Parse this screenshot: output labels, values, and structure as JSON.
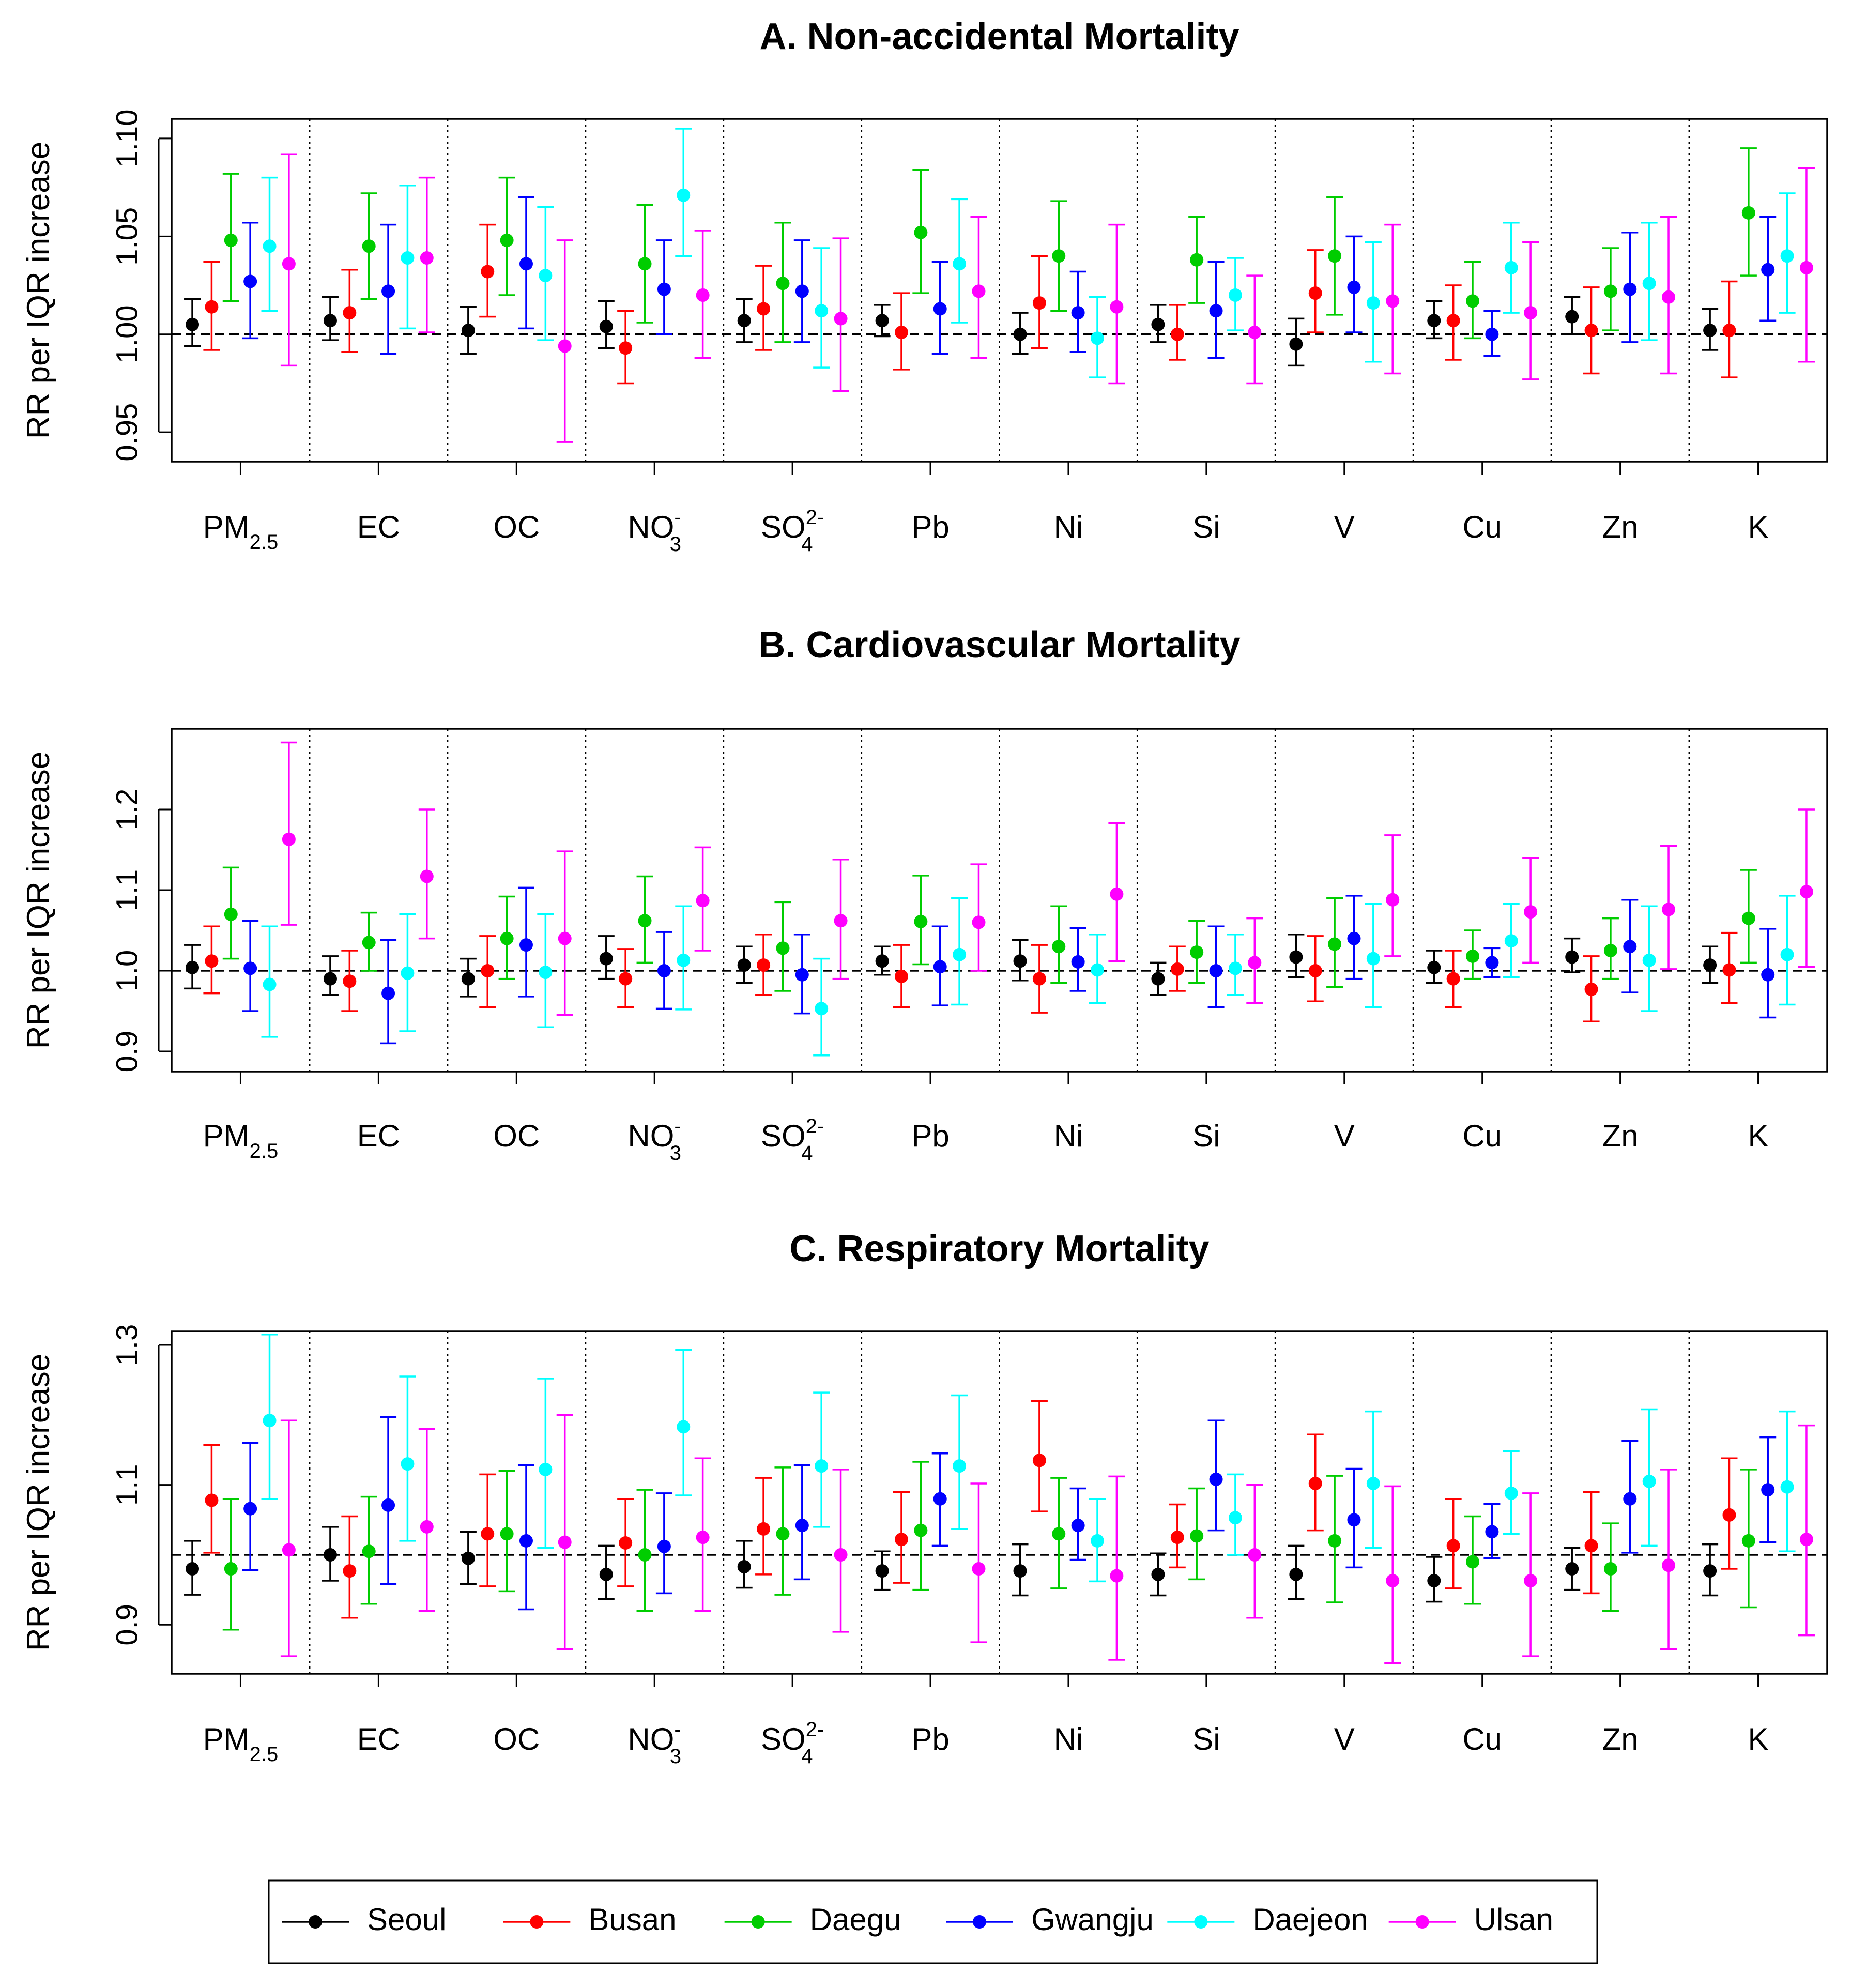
{
  "reference_line": 1.0,
  "categories": [
    {
      "base": "PM",
      "sub": "2.5",
      "sup": ""
    },
    {
      "base": "EC",
      "sub": "",
      "sup": ""
    },
    {
      "base": "OC",
      "sub": "",
      "sup": ""
    },
    {
      "base": "NO",
      "sub": "3",
      "sup": "-"
    },
    {
      "base": "SO",
      "sub": "4",
      "sup": "2-"
    },
    {
      "base": "Pb",
      "sub": "",
      "sup": ""
    },
    {
      "base": "Ni",
      "sub": "",
      "sup": ""
    },
    {
      "base": "Si",
      "sub": "",
      "sup": ""
    },
    {
      "base": "V",
      "sub": "",
      "sup": ""
    },
    {
      "base": "Cu",
      "sub": "",
      "sup": ""
    },
    {
      "base": "Zn",
      "sub": "",
      "sup": ""
    },
    {
      "base": "K",
      "sub": "",
      "sup": ""
    }
  ],
  "legend": [
    {
      "name": "Seoul",
      "color": "#000000"
    },
    {
      "name": "Busan",
      "color": "#ff0000"
    },
    {
      "name": "Daegu",
      "color": "#00cd00"
    },
    {
      "name": "Gwangju",
      "color": "#0000ff"
    },
    {
      "name": "Daejeon",
      "color": "#00ffff"
    },
    {
      "name": "Ulsan",
      "color": "#ff00ff"
    }
  ],
  "chart_data": [
    {
      "type": "scatter",
      "title": "A. Non-accidental Mortality",
      "ylabel": "RR per IQR increase",
      "ylim": [
        0.935,
        1.11
      ],
      "yticks": [
        "0.95",
        "1.00",
        "1.05",
        "1.10"
      ],
      "ytick_values": [
        0.95,
        1.0,
        1.05,
        1.1
      ],
      "series": [
        {
          "name": "Seoul",
          "estimate": [
            1.005,
            1.007,
            1.002,
            1.004,
            1.007,
            1.007,
            1.0,
            1.005,
            0.995,
            1.007,
            1.009,
            1.002
          ],
          "lower": [
            0.994,
            0.997,
            0.99,
            0.993,
            0.996,
            0.999,
            0.99,
            0.996,
            0.984,
            0.998,
            1.0,
            0.992
          ],
          "upper": [
            1.018,
            1.019,
            1.014,
            1.017,
            1.018,
            1.015,
            1.011,
            1.015,
            1.008,
            1.017,
            1.019,
            1.013
          ]
        },
        {
          "name": "Busan",
          "estimate": [
            1.014,
            1.011,
            1.032,
            0.993,
            1.013,
            1.001,
            1.016,
            1.0,
            1.021,
            1.007,
            1.002,
            1.002
          ],
          "lower": [
            0.992,
            0.991,
            1.009,
            0.975,
            0.992,
            0.982,
            0.993,
            0.987,
            1.001,
            0.987,
            0.98,
            0.978
          ],
          "upper": [
            1.037,
            1.033,
            1.056,
            1.012,
            1.035,
            1.021,
            1.04,
            1.015,
            1.043,
            1.025,
            1.024,
            1.027
          ]
        },
        {
          "name": "Daegu",
          "estimate": [
            1.048,
            1.045,
            1.048,
            1.036,
            1.026,
            1.052,
            1.04,
            1.038,
            1.04,
            1.017,
            1.022,
            1.062
          ],
          "lower": [
            1.017,
            1.018,
            1.02,
            1.006,
            0.996,
            1.021,
            1.012,
            1.016,
            1.01,
            0.998,
            1.002,
            1.03
          ],
          "upper": [
            1.082,
            1.072,
            1.08,
            1.066,
            1.057,
            1.084,
            1.068,
            1.06,
            1.07,
            1.037,
            1.044,
            1.095
          ]
        },
        {
          "name": "Gwangju",
          "estimate": [
            1.027,
            1.022,
            1.036,
            1.023,
            1.022,
            1.013,
            1.011,
            1.012,
            1.024,
            1.0,
            1.023,
            1.033
          ],
          "lower": [
            0.998,
            0.99,
            1.003,
            1.0,
            0.996,
            0.99,
            0.991,
            0.988,
            1.001,
            0.989,
            0.996,
            1.007
          ],
          "upper": [
            1.057,
            1.056,
            1.07,
            1.048,
            1.048,
            1.037,
            1.032,
            1.037,
            1.05,
            1.012,
            1.052,
            1.06
          ]
        },
        {
          "name": "Daejeon",
          "estimate": [
            1.045,
            1.039,
            1.03,
            1.071,
            1.012,
            1.036,
            0.998,
            1.02,
            1.016,
            1.034,
            1.026,
            1.04
          ],
          "lower": [
            1.012,
            1.003,
            0.997,
            1.04,
            0.983,
            1.006,
            0.978,
            1.002,
            0.986,
            1.011,
            0.997,
            1.011
          ],
          "upper": [
            1.08,
            1.076,
            1.065,
            1.105,
            1.044,
            1.069,
            1.019,
            1.039,
            1.047,
            1.057,
            1.057,
            1.072
          ]
        },
        {
          "name": "Ulsan",
          "estimate": [
            1.036,
            1.039,
            0.994,
            1.02,
            1.008,
            1.022,
            1.014,
            1.001,
            1.017,
            1.011,
            1.019,
            1.034
          ],
          "lower": [
            0.984,
            1.001,
            0.945,
            0.988,
            0.971,
            0.988,
            0.975,
            0.975,
            0.98,
            0.977,
            0.98,
            0.986
          ],
          "upper": [
            1.092,
            1.08,
            1.048,
            1.053,
            1.049,
            1.06,
            1.056,
            1.03,
            1.056,
            1.047,
            1.06,
            1.085
          ]
        }
      ]
    },
    {
      "type": "scatter",
      "title": "B. Cardiovascular Mortality",
      "ylabel": "RR per IQR increase",
      "ylim": [
        0.875,
        1.3
      ],
      "yticks": [
        "0.9",
        "1.0",
        "1.1",
        "1.2"
      ],
      "ytick_values": [
        0.9,
        1.0,
        1.1,
        1.2
      ],
      "series": [
        {
          "name": "Seoul",
          "estimate": [
            1.004,
            0.99,
            0.99,
            1.015,
            1.007,
            1.012,
            1.012,
            0.99,
            1.017,
            1.004,
            1.017,
            1.007
          ],
          "lower": [
            0.978,
            0.97,
            0.968,
            0.99,
            0.985,
            0.995,
            0.988,
            0.97,
            0.992,
            0.985,
            0.998,
            0.985
          ],
          "upper": [
            1.032,
            1.018,
            1.015,
            1.043,
            1.03,
            1.03,
            1.038,
            1.01,
            1.045,
            1.025,
            1.04,
            1.03
          ]
        },
        {
          "name": "Busan",
          "estimate": [
            1.012,
            0.987,
            1.0,
            0.99,
            1.007,
            0.993,
            0.99,
            1.002,
            1.0,
            0.99,
            0.977,
            1.001
          ],
          "lower": [
            0.972,
            0.95,
            0.955,
            0.955,
            0.97,
            0.955,
            0.948,
            0.975,
            0.962,
            0.955,
            0.937,
            0.96
          ],
          "upper": [
            1.055,
            1.025,
            1.043,
            1.027,
            1.045,
            1.032,
            1.032,
            1.03,
            1.043,
            1.025,
            1.018,
            1.047
          ]
        },
        {
          "name": "Daegu",
          "estimate": [
            1.07,
            1.035,
            1.04,
            1.062,
            1.028,
            1.061,
            1.03,
            1.023,
            1.033,
            1.018,
            1.025,
            1.065
          ],
          "lower": [
            1.015,
            1.0,
            0.99,
            1.01,
            0.975,
            1.008,
            0.985,
            0.985,
            0.98,
            0.99,
            0.99,
            1.01
          ],
          "upper": [
            1.128,
            1.072,
            1.092,
            1.117,
            1.085,
            1.118,
            1.08,
            1.062,
            1.09,
            1.05,
            1.065,
            1.125
          ]
        },
        {
          "name": "Gwangju",
          "estimate": [
            1.003,
            0.972,
            1.032,
            1.0,
            0.995,
            1.005,
            1.011,
            1.0,
            1.04,
            1.01,
            1.03,
            0.995
          ],
          "lower": [
            0.95,
            0.91,
            0.968,
            0.953,
            0.947,
            0.957,
            0.975,
            0.955,
            0.99,
            0.992,
            0.973,
            0.942
          ],
          "upper": [
            1.062,
            1.038,
            1.103,
            1.048,
            1.045,
            1.055,
            1.053,
            1.055,
            1.093,
            1.028,
            1.088,
            1.052
          ]
        },
        {
          "name": "Daejeon",
          "estimate": [
            0.983,
            0.997,
            0.998,
            1.013,
            0.953,
            1.02,
            1.001,
            1.003,
            1.015,
            1.037,
            1.013,
            1.02
          ],
          "lower": [
            0.918,
            0.925,
            0.93,
            0.952,
            0.895,
            0.958,
            0.96,
            0.97,
            0.955,
            0.992,
            0.95,
            0.958
          ],
          "upper": [
            1.055,
            1.07,
            1.07,
            1.08,
            1.015,
            1.09,
            1.045,
            1.045,
            1.083,
            1.083,
            1.08,
            1.093
          ]
        },
        {
          "name": "Ulsan",
          "estimate": [
            1.163,
            1.117,
            1.04,
            1.087,
            1.062,
            1.06,
            1.095,
            1.01,
            1.088,
            1.073,
            1.076,
            1.098
          ],
          "lower": [
            1.057,
            1.04,
            0.945,
            1.025,
            0.99,
            1.0,
            1.012,
            0.96,
            1.018,
            1.01,
            1.002,
            1.005
          ],
          "upper": [
            1.283,
            1.2,
            1.148,
            1.153,
            1.138,
            1.132,
            1.183,
            1.065,
            1.168,
            1.14,
            1.155,
            1.2
          ]
        }
      ]
    },
    {
      "type": "scatter",
      "title": "C. Respiratory Mortality",
      "ylabel": "RR per IQR increase",
      "ylim": [
        0.83,
        1.32
      ],
      "yticks": [
        "0.9",
        "1.1",
        "1.3"
      ],
      "ytick_values": [
        0.9,
        1.1,
        1.3
      ],
      "series": [
        {
          "name": "Seoul",
          "estimate": [
            0.98,
            1.0,
            0.995,
            0.972,
            0.983,
            0.977,
            0.977,
            0.972,
            0.972,
            0.963,
            0.98,
            0.977
          ],
          "lower": [
            0.943,
            0.963,
            0.958,
            0.937,
            0.953,
            0.95,
            0.942,
            0.942,
            0.937,
            0.933,
            0.95,
            0.942
          ],
          "upper": [
            1.02,
            1.04,
            1.033,
            1.013,
            1.02,
            1.005,
            1.015,
            1.002,
            1.013,
            0.997,
            1.01,
            1.015
          ]
        },
        {
          "name": "Busan",
          "estimate": [
            1.078,
            0.977,
            1.03,
            1.017,
            1.037,
            1.022,
            1.135,
            1.025,
            1.102,
            1.013,
            1.013,
            1.057
          ],
          "lower": [
            1.003,
            0.91,
            0.955,
            0.955,
            0.972,
            0.96,
            1.062,
            0.982,
            1.035,
            0.952,
            0.945,
            0.98
          ],
          "upper": [
            1.157,
            1.055,
            1.115,
            1.08,
            1.11,
            1.09,
            1.22,
            1.072,
            1.172,
            1.08,
            1.09,
            1.138
          ]
        },
        {
          "name": "Daegu",
          "estimate": [
            0.98,
            1.005,
            1.03,
            1.0,
            1.03,
            1.035,
            1.03,
            1.027,
            1.02,
            0.99,
            0.98,
            1.02
          ],
          "lower": [
            0.893,
            0.93,
            0.948,
            0.92,
            0.943,
            0.95,
            0.952,
            0.965,
            0.932,
            0.93,
            0.92,
            0.925
          ],
          "upper": [
            1.08,
            1.083,
            1.12,
            1.093,
            1.125,
            1.133,
            1.11,
            1.095,
            1.113,
            1.055,
            1.045,
            1.122
          ]
        },
        {
          "name": "Gwangju",
          "estimate": [
            1.066,
            1.071,
            1.02,
            1.012,
            1.042,
            1.08,
            1.042,
            1.108,
            1.05,
            1.033,
            1.08,
            1.093
          ],
          "lower": [
            0.978,
            0.958,
            0.922,
            0.945,
            0.965,
            1.013,
            0.993,
            1.035,
            0.982,
            0.995,
            1.003,
            1.018
          ],
          "upper": [
            1.16,
            1.197,
            1.128,
            1.088,
            1.128,
            1.145,
            1.095,
            1.192,
            1.123,
            1.073,
            1.163,
            1.168
          ]
        },
        {
          "name": "Daejeon",
          "estimate": [
            1.192,
            1.13,
            1.122,
            1.183,
            1.127,
            1.127,
            1.02,
            1.053,
            1.102,
            1.088,
            1.105,
            1.097
          ],
          "lower": [
            1.08,
            1.02,
            1.01,
            1.085,
            1.04,
            1.037,
            0.962,
            1.0,
            1.01,
            1.03,
            1.013,
            1.005
          ],
          "upper": [
            1.315,
            1.255,
            1.252,
            1.293,
            1.232,
            1.228,
            1.08,
            1.115,
            1.205,
            1.148,
            1.208,
            1.205
          ]
        },
        {
          "name": "Ulsan",
          "estimate": [
            1.007,
            1.04,
            1.018,
            1.025,
            1.0,
            0.98,
            0.97,
            1.0,
            0.963,
            0.963,
            0.985,
            1.022
          ],
          "lower": [
            0.855,
            0.92,
            0.865,
            0.92,
            0.89,
            0.875,
            0.85,
            0.91,
            0.845,
            0.855,
            0.865,
            0.885
          ],
          "upper": [
            1.192,
            1.18,
            1.2,
            1.138,
            1.122,
            1.102,
            1.112,
            1.1,
            1.098,
            1.088,
            1.122,
            1.185
          ]
        }
      ]
    }
  ]
}
